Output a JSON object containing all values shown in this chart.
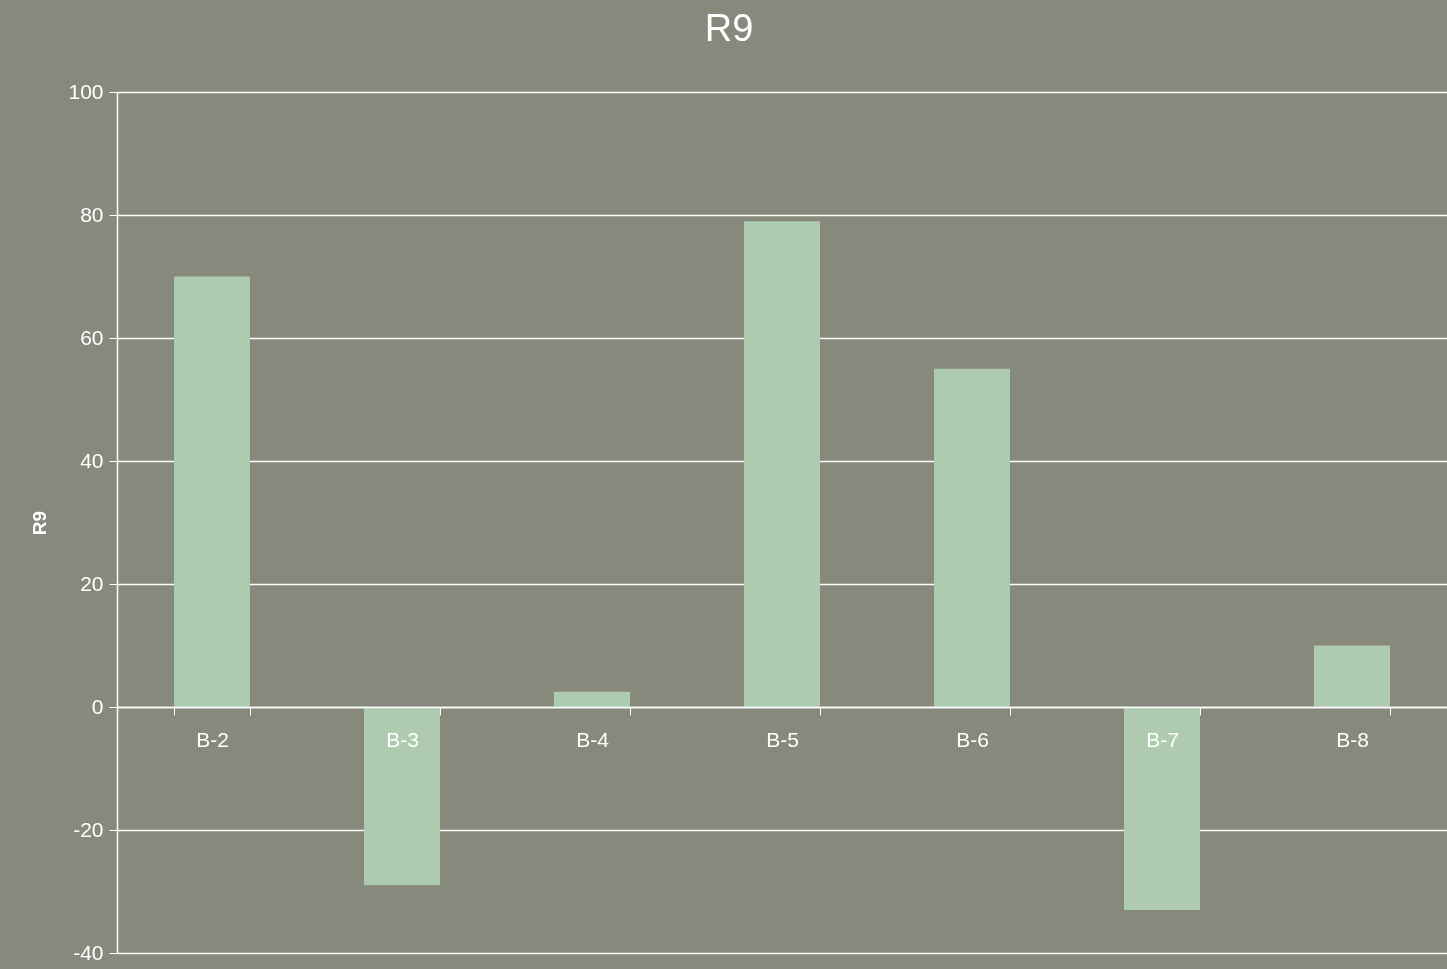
{
  "chart_data": {
    "type": "bar",
    "title": "R9",
    "ylabel": "R9",
    "categories": [
      "B-2",
      "B-3",
      "B-4",
      "B-5",
      "B-6",
      "B-7",
      "B-8"
    ],
    "values": [
      70,
      -29,
      2.5,
      79,
      55,
      -33,
      10
    ],
    "color": "#aecbb0",
    "ylim": [
      -40,
      100
    ],
    "yticks": [
      -40,
      -20,
      0,
      20,
      40,
      60,
      80,
      100
    ],
    "grid": "y"
  }
}
